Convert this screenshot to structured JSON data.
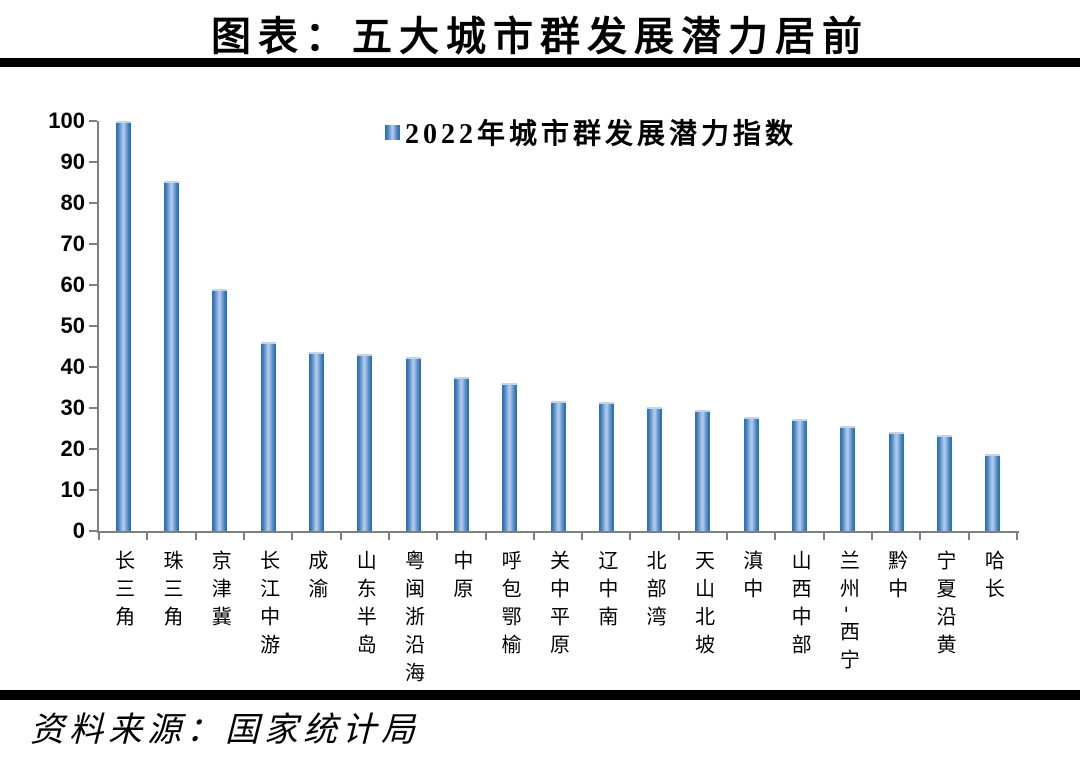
{
  "title": "图表：五大城市群发展潜力居前",
  "source": "资料来源：国家统计局",
  "chart_data": {
    "type": "bar",
    "title": "图表：五大城市群发展潜力居前",
    "legend": "2022年城市群发展潜力指数",
    "legend_position": "top-center",
    "categories": [
      "长三角",
      "珠三角",
      "京津冀",
      "长江中游",
      "成渝",
      "山东半岛",
      "粤闽浙沿海",
      "中原",
      "呼包鄂榆",
      "关中平原",
      "辽中南",
      "北部湾",
      "天山北坡",
      "滇中",
      "山西中部",
      "兰州-西宁",
      "黔中",
      "宁夏沿黄",
      "哈长"
    ],
    "values": [
      100,
      85.4,
      59,
      46.2,
      43.7,
      43.2,
      42.5,
      37.6,
      36,
      31.8,
      31.4,
      30.2,
      29.5,
      27.7,
      27.3,
      25.6,
      24.1,
      23.5,
      18.8
    ],
    "xlabel": "",
    "ylabel": "",
    "ylim": [
      0,
      100
    ],
    "yticks": [
      0,
      10,
      20,
      30,
      40,
      50,
      60,
      70,
      80,
      90,
      100
    ],
    "grid": false,
    "colors": {
      "bar_edge": "#2E74B5",
      "bar_center": "#AFC8E6",
      "axis": "#7F7F7F",
      "text": "#000000",
      "rule": "#000000"
    }
  }
}
